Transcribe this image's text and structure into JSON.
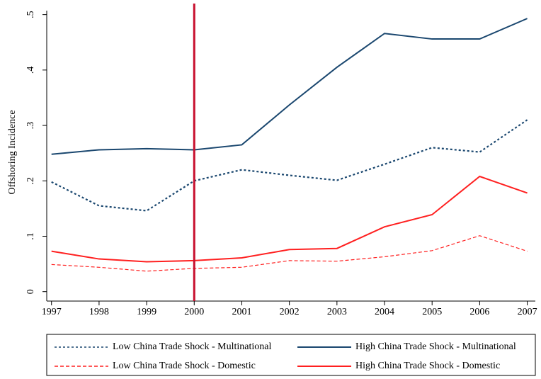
{
  "chart_data": {
    "type": "line",
    "ylabel": "Offshoring Incidence",
    "x": [
      1997,
      1998,
      1999,
      2000,
      2001,
      2002,
      2003,
      2004,
      2005,
      2006,
      2007
    ],
    "series": [
      {
        "name": "Low China Trade Shock - Multinational",
        "color": "#1a476f",
        "style": "dotted",
        "values": [
          0.198,
          0.155,
          0.146,
          0.2,
          0.22,
          0.21,
          0.201,
          0.23,
          0.26,
          0.252,
          0.31
        ]
      },
      {
        "name": "High China Trade Shock - Multinational",
        "color": "#1a476f",
        "style": "solid",
        "values": [
          0.248,
          0.256,
          0.258,
          0.256,
          0.265,
          0.337,
          0.405,
          0.466,
          0.456,
          0.456,
          0.493
        ]
      },
      {
        "name": "Low China Trade Shock - Domestic",
        "color": "#ff2020",
        "style": "dashed",
        "values": [
          0.049,
          0.044,
          0.037,
          0.042,
          0.044,
          0.056,
          0.055,
          0.063,
          0.074,
          0.101,
          0.073
        ]
      },
      {
        "name": "High China Trade Shock - Domestic",
        "color": "#ff2020",
        "style": "solid",
        "values": [
          0.073,
          0.059,
          0.054,
          0.056,
          0.061,
          0.076,
          0.078,
          0.117,
          0.139,
          0.208,
          0.178
        ]
      }
    ],
    "vline": 2000,
    "vline_color": "#c8102e",
    "xlim": [
      1996.9,
      2007.17
    ],
    "xticks": [
      1997,
      1998,
      1999,
      2000,
      2001,
      2002,
      2003,
      2004,
      2005,
      2006,
      2007
    ],
    "ylim": [
      -0.017,
      0.52
    ],
    "yticks": [
      0,
      {
        "value": 0.1,
        "label": ".1"
      },
      {
        "value": 0.2,
        "label": ".2"
      },
      {
        "value": 0.3,
        "label": ".3"
      },
      {
        "value": 0.4,
        "label": ".4"
      },
      {
        "value": 0.5,
        "label": ".5"
      }
    ],
    "legend": "bottom"
  }
}
